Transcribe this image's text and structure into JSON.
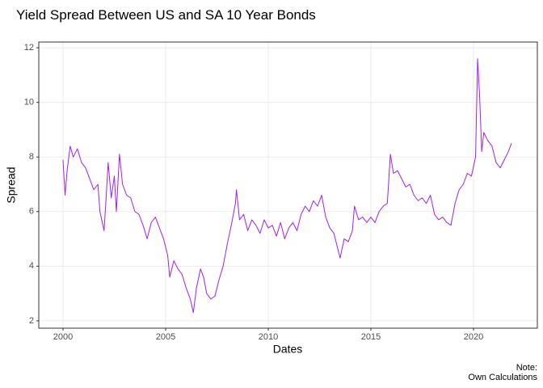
{
  "chart_data": {
    "type": "line",
    "title": "Yield Spread Between US and SA 10 Year Bonds",
    "xlabel": "Dates",
    "ylabel": "Spread",
    "caption": [
      "Note:",
      "Own Calculations"
    ],
    "x": [
      2000.0,
      2000.1,
      2000.2,
      2000.35,
      2000.5,
      2000.7,
      2000.9,
      2001.1,
      2001.3,
      2001.5,
      2001.7,
      2001.8,
      2002.0,
      2002.1,
      2002.2,
      2002.35,
      2002.5,
      2002.6,
      2002.75,
      2002.9,
      2003.1,
      2003.3,
      2003.5,
      2003.7,
      2003.9,
      2004.1,
      2004.3,
      2004.5,
      2004.7,
      2004.9,
      2005.1,
      2005.2,
      2005.4,
      2005.6,
      2005.8,
      2006.0,
      2006.2,
      2006.35,
      2006.5,
      2006.7,
      2006.85,
      2007.0,
      2007.2,
      2007.4,
      2007.6,
      2007.8,
      2008.0,
      2008.2,
      2008.4,
      2008.45,
      2008.6,
      2008.8,
      2009.0,
      2009.2,
      2009.4,
      2009.6,
      2009.8,
      2010.0,
      2010.2,
      2010.4,
      2010.6,
      2010.8,
      2011.0,
      2011.2,
      2011.4,
      2011.6,
      2011.8,
      2012.0,
      2012.2,
      2012.4,
      2012.6,
      2012.8,
      2013.0,
      2013.2,
      2013.4,
      2013.5,
      2013.7,
      2013.9,
      2014.1,
      2014.2,
      2014.4,
      2014.6,
      2014.8,
      2015.0,
      2015.2,
      2015.4,
      2015.6,
      2015.8,
      2015.95,
      2016.1,
      2016.3,
      2016.5,
      2016.7,
      2016.9,
      2017.1,
      2017.3,
      2017.5,
      2017.7,
      2017.9,
      2018.1,
      2018.3,
      2018.5,
      2018.7,
      2018.9,
      2019.1,
      2019.3,
      2019.5,
      2019.7,
      2019.9,
      2020.1,
      2020.2,
      2020.3,
      2020.4,
      2020.5,
      2020.7,
      2020.9,
      2021.1,
      2021.3,
      2021.5,
      2021.7,
      2021.85
    ],
    "series": [
      {
        "name": "Spread",
        "color": "#a020f0",
        "values": [
          7.9,
          6.6,
          7.5,
          8.4,
          8.0,
          8.3,
          7.8,
          7.6,
          7.2,
          6.8,
          7.0,
          6.0,
          5.3,
          6.5,
          7.8,
          6.5,
          7.3,
          6.0,
          8.1,
          7.0,
          6.6,
          6.5,
          6.0,
          5.9,
          5.5,
          5.0,
          5.6,
          5.8,
          5.4,
          5.0,
          4.4,
          3.6,
          4.2,
          3.9,
          3.7,
          3.2,
          2.8,
          2.3,
          3.2,
          3.9,
          3.6,
          3.0,
          2.8,
          2.9,
          3.5,
          4.0,
          4.8,
          5.5,
          6.3,
          6.8,
          5.7,
          5.9,
          5.3,
          5.7,
          5.5,
          5.2,
          5.7,
          5.4,
          5.5,
          5.1,
          5.6,
          5.0,
          5.4,
          5.6,
          5.3,
          5.9,
          6.2,
          6.0,
          6.4,
          6.2,
          6.6,
          5.8,
          5.4,
          5.2,
          4.6,
          4.3,
          5.0,
          4.9,
          5.3,
          6.2,
          5.7,
          5.8,
          5.6,
          5.8,
          5.6,
          6.0,
          6.2,
          6.3,
          8.1,
          7.4,
          7.5,
          7.2,
          6.9,
          7.0,
          6.6,
          6.4,
          6.5,
          6.3,
          6.6,
          5.9,
          5.7,
          5.8,
          5.6,
          5.5,
          6.3,
          6.8,
          7.0,
          7.4,
          7.3,
          8.0,
          11.6,
          10.2,
          8.2,
          8.9,
          8.6,
          8.4,
          7.8,
          7.6,
          7.9,
          8.2,
          8.5
        ]
      }
    ],
    "xlim": [
      1998.82,
      2023.11
    ],
    "xticks": [
      2000,
      2005,
      2010,
      2015,
      2020
    ],
    "ylim": [
      1.73,
      12.21
    ],
    "yticks": [
      2,
      4,
      6,
      8,
      10,
      12
    ],
    "grid": true
  }
}
